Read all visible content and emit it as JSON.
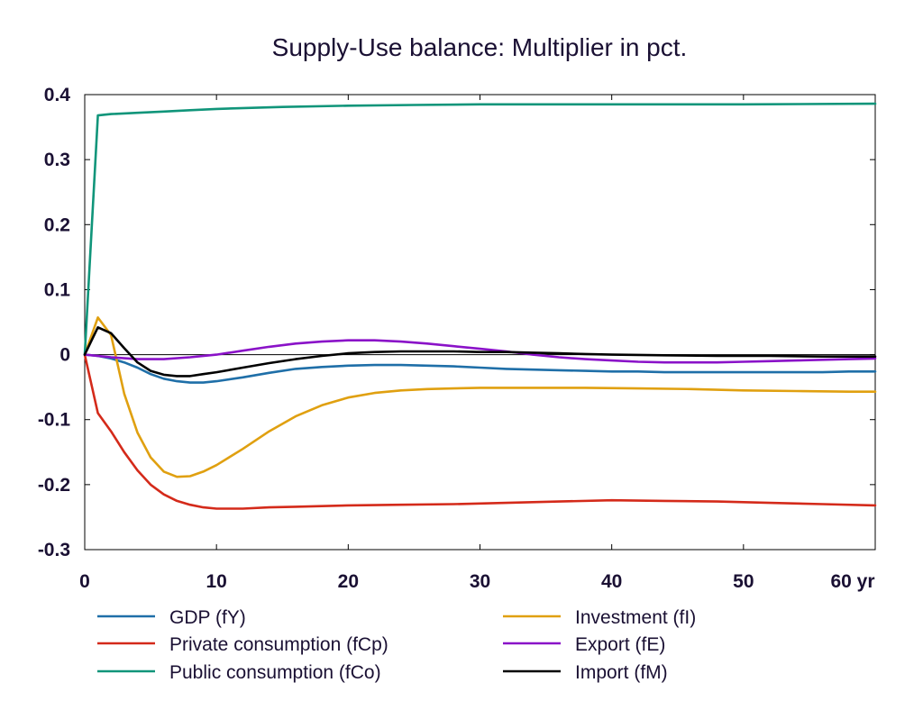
{
  "chart_data": {
    "type": "line",
    "title": "Supply-Use balance: Multiplier in pct.",
    "xlabel": "",
    "ylabel": "",
    "xlim": [
      0,
      60
    ],
    "ylim": [
      -0.3,
      0.4
    ],
    "x_ticks": [
      0,
      10,
      20,
      30,
      40,
      50,
      60
    ],
    "x_tick_labels": [
      "0",
      "10",
      "20",
      "30",
      "40",
      "50",
      "60 yr"
    ],
    "y_ticks": [
      -0.3,
      -0.2,
      -0.1,
      0,
      0.1,
      0.2,
      0.3,
      0.4
    ],
    "y_tick_labels": [
      "-0.3",
      "-0.2",
      "-0.1",
      "0",
      "0.1",
      "0.2",
      "0.3",
      "0.4"
    ],
    "zero_line": true,
    "grid": false,
    "legend_position": "bottom",
    "series": [
      {
        "name": "GDP (fY)",
        "color": "#1f6fa8",
        "points": [
          [
            0,
            0
          ],
          [
            1,
            -0.002
          ],
          [
            2,
            -0.006
          ],
          [
            3,
            -0.012
          ],
          [
            4,
            -0.02
          ],
          [
            5,
            -0.03
          ],
          [
            6,
            -0.037
          ],
          [
            7,
            -0.041
          ],
          [
            8,
            -0.043
          ],
          [
            9,
            -0.043
          ],
          [
            10,
            -0.041
          ],
          [
            12,
            -0.035
          ],
          [
            14,
            -0.028
          ],
          [
            16,
            -0.022
          ],
          [
            18,
            -0.019
          ],
          [
            20,
            -0.017
          ],
          [
            22,
            -0.016
          ],
          [
            24,
            -0.016
          ],
          [
            26,
            -0.017
          ],
          [
            28,
            -0.018
          ],
          [
            30,
            -0.02
          ],
          [
            32,
            -0.022
          ],
          [
            34,
            -0.023
          ],
          [
            36,
            -0.024
          ],
          [
            38,
            -0.025
          ],
          [
            40,
            -0.026
          ],
          [
            42,
            -0.026
          ],
          [
            44,
            -0.027
          ],
          [
            46,
            -0.027
          ],
          [
            48,
            -0.027
          ],
          [
            50,
            -0.027
          ],
          [
            52,
            -0.027
          ],
          [
            54,
            -0.027
          ],
          [
            56,
            -0.027
          ],
          [
            58,
            -0.026
          ],
          [
            60,
            -0.026
          ]
        ]
      },
      {
        "name": "Investment (fI)",
        "color": "#e0a010",
        "points": [
          [
            0,
            0
          ],
          [
            1,
            0.057
          ],
          [
            2,
            0.03
          ],
          [
            3,
            -0.06
          ],
          [
            4,
            -0.12
          ],
          [
            5,
            -0.158
          ],
          [
            6,
            -0.18
          ],
          [
            7,
            -0.188
          ],
          [
            8,
            -0.187
          ],
          [
            9,
            -0.18
          ],
          [
            10,
            -0.17
          ],
          [
            12,
            -0.145
          ],
          [
            14,
            -0.118
          ],
          [
            16,
            -0.095
          ],
          [
            18,
            -0.078
          ],
          [
            20,
            -0.066
          ],
          [
            22,
            -0.059
          ],
          [
            24,
            -0.055
          ],
          [
            26,
            -0.053
          ],
          [
            28,
            -0.052
          ],
          [
            30,
            -0.051
          ],
          [
            34,
            -0.051
          ],
          [
            38,
            -0.051
          ],
          [
            42,
            -0.052
          ],
          [
            46,
            -0.053
          ],
          [
            50,
            -0.055
          ],
          [
            54,
            -0.056
          ],
          [
            58,
            -0.057
          ],
          [
            60,
            -0.057
          ]
        ]
      },
      {
        "name": "Private consumption (fCp)",
        "color": "#d42a1a",
        "points": [
          [
            0,
            0
          ],
          [
            1,
            -0.09
          ],
          [
            2,
            -0.118
          ],
          [
            3,
            -0.15
          ],
          [
            4,
            -0.178
          ],
          [
            5,
            -0.2
          ],
          [
            6,
            -0.215
          ],
          [
            7,
            -0.225
          ],
          [
            8,
            -0.231
          ],
          [
            9,
            -0.235
          ],
          [
            10,
            -0.237
          ],
          [
            12,
            -0.237
          ],
          [
            14,
            -0.235
          ],
          [
            16,
            -0.234
          ],
          [
            18,
            -0.233
          ],
          [
            20,
            -0.232
          ],
          [
            24,
            -0.231
          ],
          [
            28,
            -0.23
          ],
          [
            32,
            -0.228
          ],
          [
            36,
            -0.226
          ],
          [
            40,
            -0.224
          ],
          [
            44,
            -0.225
          ],
          [
            48,
            -0.226
          ],
          [
            52,
            -0.228
          ],
          [
            56,
            -0.23
          ],
          [
            60,
            -0.232
          ]
        ]
      },
      {
        "name": "Export (fE)",
        "color": "#8a12c8",
        "points": [
          [
            0,
            0
          ],
          [
            2,
            -0.004
          ],
          [
            4,
            -0.007
          ],
          [
            6,
            -0.007
          ],
          [
            8,
            -0.004
          ],
          [
            10,
            0.0
          ],
          [
            12,
            0.006
          ],
          [
            14,
            0.012
          ],
          [
            16,
            0.017
          ],
          [
            18,
            0.02
          ],
          [
            20,
            0.022
          ],
          [
            22,
            0.022
          ],
          [
            24,
            0.02
          ],
          [
            26,
            0.017
          ],
          [
            28,
            0.013
          ],
          [
            30,
            0.009
          ],
          [
            32,
            0.005
          ],
          [
            34,
            0.0
          ],
          [
            36,
            -0.004
          ],
          [
            38,
            -0.007
          ],
          [
            40,
            -0.009
          ],
          [
            42,
            -0.011
          ],
          [
            44,
            -0.012
          ],
          [
            46,
            -0.012
          ],
          [
            48,
            -0.012
          ],
          [
            50,
            -0.011
          ],
          [
            52,
            -0.01
          ],
          [
            54,
            -0.009
          ],
          [
            56,
            -0.008
          ],
          [
            58,
            -0.007
          ],
          [
            60,
            -0.006
          ]
        ]
      },
      {
        "name": "Public consumption (fCo)",
        "color": "#10957a",
        "points": [
          [
            0,
            0
          ],
          [
            1,
            0.368
          ],
          [
            2,
            0.37
          ],
          [
            4,
            0.372
          ],
          [
            6,
            0.374
          ],
          [
            8,
            0.376
          ],
          [
            10,
            0.378
          ],
          [
            15,
            0.381
          ],
          [
            20,
            0.383
          ],
          [
            25,
            0.384
          ],
          [
            30,
            0.385
          ],
          [
            40,
            0.385
          ],
          [
            50,
            0.385
          ],
          [
            60,
            0.386
          ]
        ]
      },
      {
        "name": "Import (fM)",
        "color": "#000000",
        "points": [
          [
            0,
            0
          ],
          [
            1,
            0.042
          ],
          [
            2,
            0.033
          ],
          [
            3,
            0.01
          ],
          [
            4,
            -0.012
          ],
          [
            5,
            -0.025
          ],
          [
            6,
            -0.031
          ],
          [
            7,
            -0.033
          ],
          [
            8,
            -0.033
          ],
          [
            9,
            -0.03
          ],
          [
            10,
            -0.027
          ],
          [
            12,
            -0.02
          ],
          [
            14,
            -0.013
          ],
          [
            16,
            -0.007
          ],
          [
            18,
            -0.002
          ],
          [
            20,
            0.002
          ],
          [
            22,
            0.004
          ],
          [
            24,
            0.005
          ],
          [
            26,
            0.005
          ],
          [
            28,
            0.005
          ],
          [
            30,
            0.004
          ],
          [
            32,
            0.004
          ],
          [
            34,
            0.003
          ],
          [
            36,
            0.002
          ],
          [
            38,
            0.001
          ],
          [
            40,
            0.0
          ],
          [
            44,
            -0.001
          ],
          [
            48,
            -0.002
          ],
          [
            52,
            -0.002
          ],
          [
            56,
            -0.003
          ],
          [
            60,
            -0.003
          ]
        ]
      }
    ],
    "legend_layout": [
      [
        "GDP (fY)",
        "Investment (fI)"
      ],
      [
        "Private consumption (fCp)",
        "Export (fE)"
      ],
      [
        "Public consumption (fCo)",
        "Import (fM)"
      ]
    ]
  }
}
